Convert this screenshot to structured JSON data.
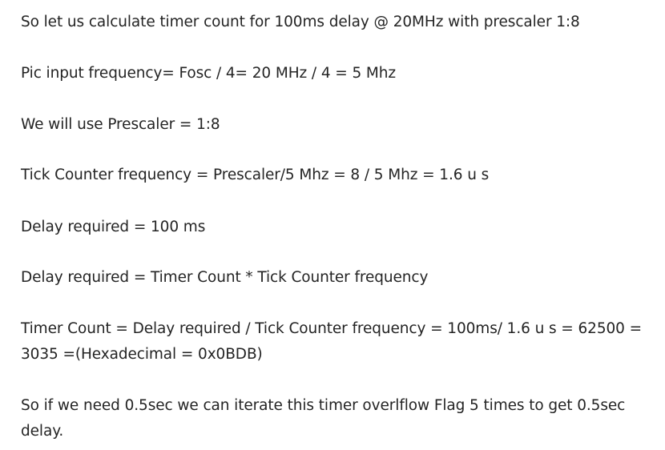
{
  "paragraphs": [
    "So let us calculate timer count for 100ms delay @ 20MHz with prescaler 1:8",
    "Pic input frequency= Fosc / 4= 20 MHz / 4 = 5 Mhz",
    "We will use Prescaler = 1:8",
    "Tick Counter frequency = Prescaler/5 Mhz = 8 / 5 Mhz = 1.6 u s",
    "Delay required = 100 ms",
    "Delay required = Timer Count * Tick Counter frequency",
    "Timer Count = Delay required / Tick Counter frequency = 100ms/ 1.6 u s = 62500 = 3035 =(Hexadecimal = 0x0BDB)",
    "So if we need 0.5sec we can iterate this timer overlflow Flag 5 times to get 0.5sec delay."
  ]
}
